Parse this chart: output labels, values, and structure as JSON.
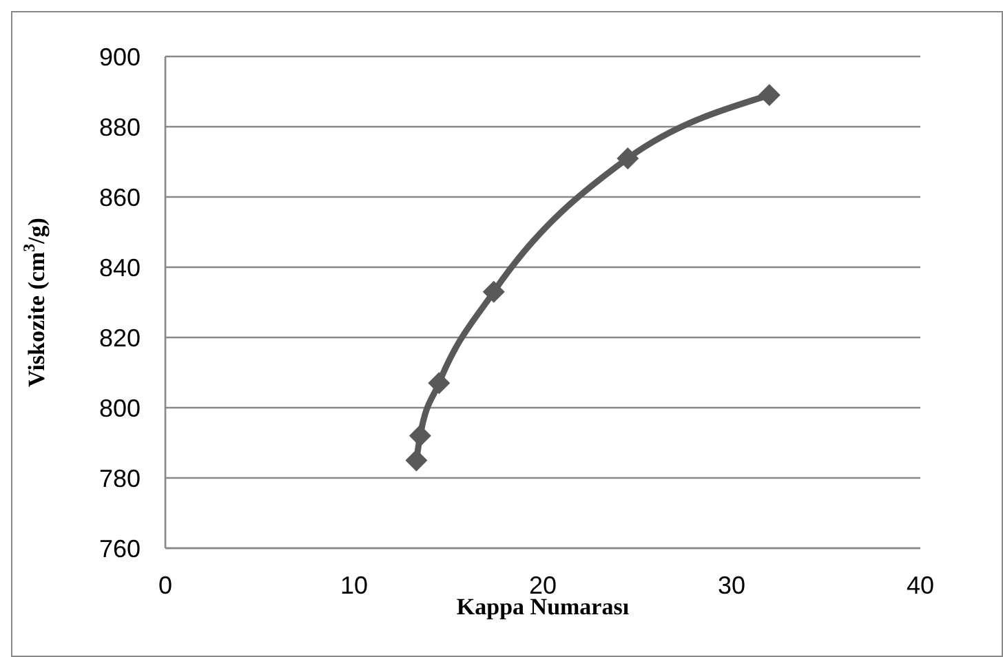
{
  "chart_data": {
    "type": "line",
    "xlabel": "Kappa Numarası",
    "ylabel": "Viskozite  (cm$^{3}$/g)",
    "x": [
      13.3,
      13.5,
      14.5,
      17.4,
      24.5,
      32.0
    ],
    "series": [
      {
        "color": "#595959",
        "values": [
          785,
          792,
          807,
          833,
          871,
          889
        ]
      }
    ],
    "xlim": [
      0,
      40
    ],
    "xticks": [
      0,
      10,
      20,
      30,
      40
    ],
    "ylim": [
      760,
      900
    ],
    "yticks": [
      760,
      780,
      800,
      820,
      840,
      860,
      880,
      900
    ],
    "grid": "y",
    "marker": "diamond",
    "line_style": "solid",
    "legend": false
  }
}
